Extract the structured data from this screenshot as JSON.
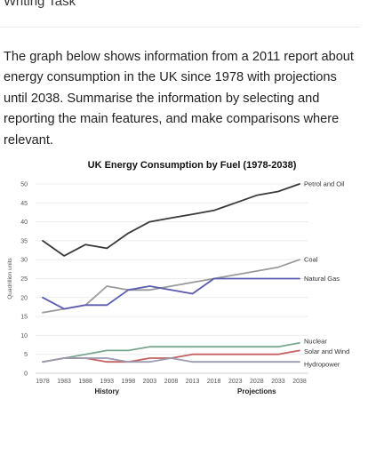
{
  "header": {
    "title": "Writing Task"
  },
  "task": {
    "text": "The graph below shows information from a 2011 report about energy consumption in the UK since 1978 with projections until 2038. Summarise the information by selecting and reporting the main features, and make comparisons where relevant."
  },
  "chart_data": {
    "type": "line",
    "title": "UK Energy Consumption by Fuel (1978-2038)",
    "ylabel": "Quadrillion units",
    "xlabel": "",
    "ylim": [
      0,
      50
    ],
    "yticks": [
      0,
      5,
      10,
      15,
      20,
      25,
      30,
      35,
      40,
      45,
      50
    ],
    "x": [
      1978,
      1983,
      1988,
      1993,
      1998,
      2003,
      2008,
      2013,
      2018,
      2023,
      2028,
      2033,
      2038
    ],
    "grid": "horizontal",
    "group_labels": [
      "History",
      "Projections"
    ],
    "series": [
      {
        "name": "Petrol and Oil",
        "color": "#3a3a3a",
        "values": [
          35,
          31,
          34,
          33,
          37,
          40,
          41,
          42,
          43,
          45,
          47,
          48,
          50
        ]
      },
      {
        "name": "Coal",
        "color": "#9a9a9a",
        "values": [
          16,
          17,
          18,
          23,
          22,
          22,
          23,
          24,
          25,
          26,
          27,
          28,
          30
        ]
      },
      {
        "name": "Natural Gas",
        "color": "#5b5bb0",
        "values": [
          20,
          17,
          18,
          18,
          22,
          23,
          22,
          21,
          25,
          25,
          25,
          25,
          25
        ]
      },
      {
        "name": "Nuclear",
        "color": "#7aa68e",
        "values": [
          3,
          4,
          5,
          6,
          6,
          7,
          7,
          7,
          7,
          7,
          7,
          7,
          8
        ]
      },
      {
        "name": "Solar and Wind",
        "color": "#c46060",
        "values": [
          3,
          4,
          4,
          3,
          3,
          4,
          4,
          5,
          5,
          5,
          5,
          5,
          6
        ]
      },
      {
        "name": "Hydropower",
        "color": "#9a9ab0",
        "values": [
          3,
          4,
          4,
          4,
          3,
          3,
          4,
          3,
          3,
          3,
          3,
          3,
          3
        ]
      }
    ]
  }
}
